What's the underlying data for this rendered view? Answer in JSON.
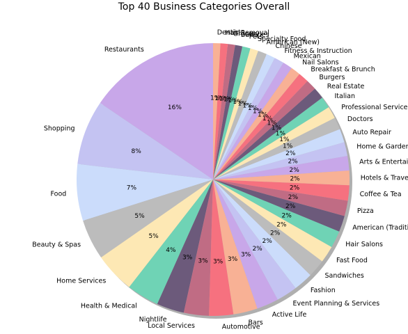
{
  "chart_data": {
    "type": "pie",
    "title": "Top 40 Business Categories Overall",
    "start_angle_deg": 90,
    "direction": "counterclockwise",
    "shadow": true,
    "colors": [
      "#c8a7e9",
      "#c4c3f2",
      "#cbdcfb",
      "#bcbcbc",
      "#fde8b4",
      "#6fd3b5",
      "#6c5a7b",
      "#c06c84",
      "#f6717f",
      "#f8b195"
    ],
    "categories": [
      "Restaurants",
      "Shopping",
      "Food",
      "Beauty & Spas",
      "Home Services",
      "Health & Medical",
      "Nightlife",
      "Local Services",
      "Automotive",
      "Bars",
      "Active Life",
      "Event Planning & Services",
      "Fashion",
      "Sandwiches",
      "Fast Food",
      "Hair Salons",
      "American (Traditional)",
      "Pizza",
      "Coffee & Tea",
      "Hotels & Travel",
      "Arts & Entertainment",
      "Home & Garden",
      "Auto Repair",
      "Doctors",
      "Professional Services",
      "Italian",
      "Real Estate",
      "Burgers",
      "Breakfast & Brunch",
      "Nail Salons",
      "Mexican",
      "Fitness & Instruction",
      "Chinese",
      "American (New)",
      "Specialty Food",
      "Pets",
      "Bakeries",
      "Grocery",
      "Hair Removal",
      "Dentists"
    ],
    "values": [
      16.2,
      8.0,
      7.0,
      5.0,
      5.0,
      4.0,
      3.4,
      3.1,
      3.0,
      3.0,
      2.7,
      2.6,
      2.4,
      2.2,
      2.1,
      2.1,
      2.0,
      1.9,
      1.9,
      1.8,
      1.8,
      1.7,
      1.7,
      1.5,
      1.5,
      1.4,
      1.4,
      1.3,
      1.3,
      1.2,
      1.2,
      1.2,
      1.1,
      1.1,
      1.0,
      1.0,
      0.9,
      0.9,
      0.9,
      0.9
    ],
    "labels_pct": [
      "16%",
      "8%",
      "7%",
      "5%",
      "5%",
      "4%",
      "3%",
      "3%",
      "3%",
      "3%",
      "3%",
      "2%",
      "2%",
      "2%",
      "2%",
      "2%",
      "2%",
      "2%",
      "2%",
      "2%",
      "2%",
      "2%",
      "2%",
      "1%",
      "1%",
      "1%",
      "1%",
      "1%",
      "1%",
      "1%",
      "1%",
      "1%",
      "1%",
      "1%",
      "1%",
      "1%",
      "1%",
      "1%",
      "1%",
      "1%"
    ]
  }
}
